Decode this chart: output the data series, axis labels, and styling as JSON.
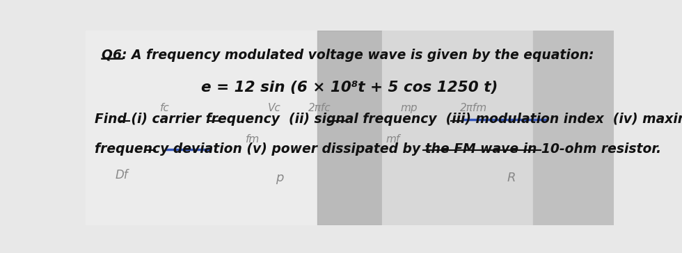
{
  "bg_color": "#d8d8d8",
  "bg_left": "#e8e8e8",
  "bg_mid": "#a8a8a8",
  "bg_right": "#c8c8c8",
  "fig_width": 9.8,
  "fig_height": 3.64,
  "dpi": 100,
  "line1": "Q6: A frequency modulated voltage wave is given by the equation:",
  "equation": "e = 12 sin (6 × 10⁸t + 5 cos 1250 t)",
  "find_line1": "Find (i) carrier frequency  (ii) signal frequency  (iii) modulation index  (iv) maximum",
  "find_line2": "frequency deviation (v) power dissipated by the FM wave in 10-ohm resistor.",
  "annot_fc": "fc",
  "annot_vc": "Vc",
  "annot_2pfc": "2πfc",
  "annot_mp": "mp",
  "annot_2pfm": "2πfm",
  "annot_fm": "fm",
  "annot_mf": "mf",
  "annot_df": "Df",
  "annot_p": "p",
  "annot_R": "R",
  "hw_color": "#888888",
  "hw_color2": "#999999",
  "text_color": "#111111",
  "blue_line": "#3355bb",
  "dark_line": "#111111"
}
